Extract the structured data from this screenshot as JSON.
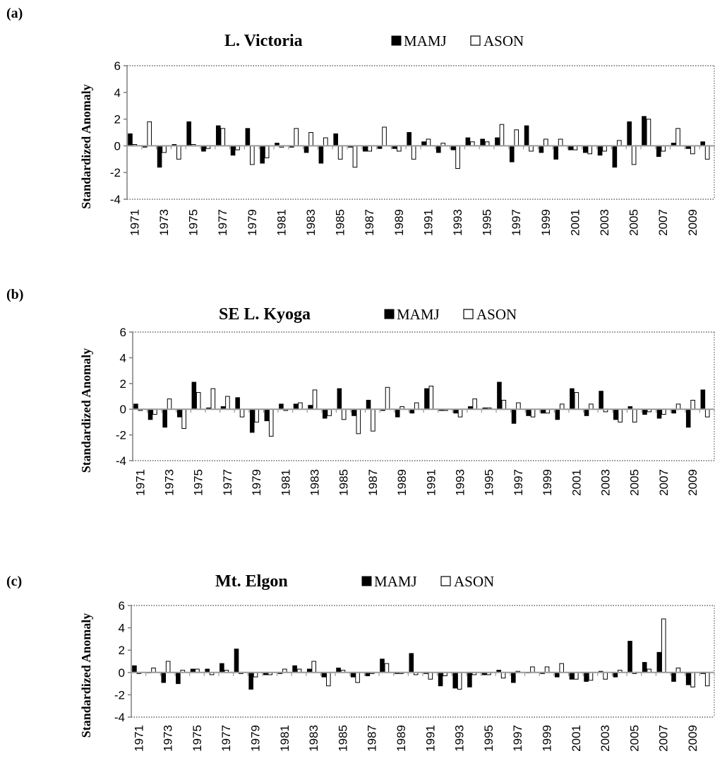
{
  "panels": [
    {
      "label": "(a)",
      "chart_data": {
        "type": "bar",
        "title": "L. Victoria",
        "ylabel": "Standardized Anomaly",
        "xlabel": "",
        "ylim": [
          -4,
          6
        ],
        "yticks": [
          "6",
          "4",
          "2",
          "0",
          "-2",
          "-4"
        ],
        "legend": {
          "position": "top",
          "entries": [
            "MAMJ",
            "ASON"
          ]
        },
        "x_tick_labels": [
          "1971",
          "1973",
          "1975",
          "1977",
          "1979",
          "1981",
          "1983",
          "1985",
          "1987",
          "1989",
          "1991",
          "1993",
          "1995",
          "1997",
          "1999",
          "2001",
          "2003",
          "2005",
          "2007",
          "2009"
        ],
        "categories": [
          "1971",
          "1972",
          "1973",
          "1974",
          "1975",
          "1976",
          "1977",
          "1978",
          "1979",
          "1980",
          "1981",
          "1982",
          "1983",
          "1984",
          "1985",
          "1986",
          "1987",
          "1988",
          "1989",
          "1990",
          "1991",
          "1992",
          "1993",
          "1994",
          "1995",
          "1996",
          "1997",
          "1998",
          "1999",
          "2000",
          "2001",
          "2002",
          "2003",
          "2004",
          "2005",
          "2006",
          "2007",
          "2008",
          "2009",
          "2010"
        ],
        "series": [
          {
            "name": "MAMJ",
            "values": [
              0.9,
              -0.1,
              -1.6,
              0.1,
              1.8,
              -0.4,
              1.5,
              -0.7,
              1.3,
              -1.3,
              0.2,
              -0.1,
              -0.5,
              -1.3,
              0.9,
              -0.1,
              -0.4,
              -0.2,
              -0.2,
              1.0,
              0.3,
              -0.5,
              -0.3,
              0.6,
              0.5,
              0.6,
              -1.2,
              1.5,
              -0.5,
              -1.0,
              -0.3,
              -0.5,
              -0.7,
              -1.6,
              1.8,
              2.2,
              -0.8,
              0.2,
              -0.2,
              0.3
            ]
          },
          {
            "name": "ASON",
            "values": [
              0.1,
              1.8,
              -0.5,
              -1.0,
              0.1,
              -0.2,
              1.3,
              -0.3,
              -1.4,
              -0.9,
              -0.1,
              1.3,
              1.0,
              0.6,
              -1.0,
              -1.6,
              -0.4,
              1.4,
              -0.4,
              -1.0,
              0.5,
              0.2,
              -1.7,
              0.3,
              0.3,
              1.6,
              1.2,
              -0.4,
              0.5,
              0.5,
              -0.3,
              -0.6,
              -0.4,
              0.4,
              -1.4,
              2.0,
              -0.4,
              1.3,
              -0.6,
              -1.0
            ]
          }
        ]
      }
    },
    {
      "label": "(b)",
      "chart_data": {
        "type": "bar",
        "title": "SE L. Kyoga",
        "ylabel": "Standardized Anomaly",
        "xlabel": "",
        "ylim": [
          -4,
          6
        ],
        "yticks": [
          "6",
          "4",
          "2",
          "0",
          "-2",
          "-4"
        ],
        "legend": {
          "position": "top",
          "entries": [
            "MAMJ",
            "ASON"
          ]
        },
        "x_tick_labels": [
          "1971",
          "1973",
          "1975",
          "1977",
          "1979",
          "1981",
          "1983",
          "1985",
          "1987",
          "1989",
          "1991",
          "1993",
          "1995",
          "1997",
          "1999",
          "2001",
          "2003",
          "2005",
          "2007",
          "2009"
        ],
        "categories": [
          "1971",
          "1972",
          "1973",
          "1974",
          "1975",
          "1976",
          "1977",
          "1978",
          "1979",
          "1980",
          "1981",
          "1982",
          "1983",
          "1984",
          "1985",
          "1986",
          "1987",
          "1988",
          "1989",
          "1990",
          "1991",
          "1992",
          "1993",
          "1994",
          "1995",
          "1996",
          "1997",
          "1998",
          "1999",
          "2000",
          "2001",
          "2002",
          "2003",
          "2004",
          "2005",
          "2006",
          "2007",
          "2008",
          "2009",
          "2010"
        ],
        "series": [
          {
            "name": "MAMJ",
            "values": [
              0.4,
              -0.8,
              -1.4,
              -0.6,
              2.1,
              0.1,
              0.2,
              0.9,
              -1.8,
              -0.9,
              0.4,
              0.4,
              0.3,
              -0.7,
              1.6,
              -0.5,
              0.7,
              -0.1,
              -0.6,
              -0.3,
              1.6,
              -0.1,
              -0.3,
              0.2,
              0.1,
              2.1,
              -1.1,
              -0.5,
              -0.3,
              -0.8,
              1.6,
              -0.5,
              1.4,
              -0.8,
              0.2,
              -0.4,
              -0.7,
              -0.3,
              -1.4,
              1.5
            ]
          },
          {
            "name": "ASON",
            "values": [
              -0.1,
              -0.4,
              0.8,
              -1.5,
              1.3,
              1.6,
              1.0,
              -0.6,
              -1.0,
              -2.1,
              -0.1,
              0.5,
              1.5,
              -0.5,
              -0.8,
              -1.9,
              -1.7,
              1.7,
              0.2,
              0.5,
              1.8,
              -0.1,
              -0.6,
              0.8,
              0.1,
              0.7,
              0.5,
              -0.6,
              -0.3,
              0.4,
              1.3,
              0.4,
              -0.2,
              -1.0,
              -1.0,
              -0.2,
              -0.4,
              0.4,
              0.7,
              -0.6
            ]
          }
        ]
      }
    },
    {
      "label": "(c)",
      "chart_data": {
        "type": "bar",
        "title": "Mt. Elgon",
        "ylabel": "Standardized Anomaly",
        "xlabel": "",
        "ylim": [
          -4,
          6
        ],
        "yticks": [
          "6",
          "4",
          "2",
          "0",
          "-2",
          "-4"
        ],
        "legend": {
          "position": "top",
          "entries": [
            "MAMJ",
            "ASON"
          ]
        },
        "x_tick_labels": [
          "1971",
          "1973",
          "1975",
          "1977",
          "1979",
          "1981",
          "1983",
          "1985",
          "1987",
          "1989",
          "1991",
          "1993",
          "1995",
          "1997",
          "1999",
          "2001",
          "2003",
          "2005",
          "2007",
          "2009"
        ],
        "categories": [
          "1971",
          "1972",
          "1973",
          "1974",
          "1975",
          "1976",
          "1977",
          "1978",
          "1979",
          "1980",
          "1981",
          "1982",
          "1983",
          "1984",
          "1985",
          "1986",
          "1987",
          "1988",
          "1989",
          "1990",
          "1991",
          "1992",
          "1993",
          "1994",
          "1995",
          "1996",
          "1997",
          "1998",
          "1999",
          "2000",
          "2001",
          "2002",
          "2003",
          "2004",
          "2005",
          "2006",
          "2007",
          "2008",
          "2009",
          "2010"
        ],
        "series": [
          {
            "name": "MAMJ",
            "values": [
              0.6,
              0.0,
              -0.9,
              -1.0,
              0.3,
              0.3,
              0.8,
              2.1,
              -1.5,
              -0.2,
              -0.1,
              0.6,
              0.3,
              -0.4,
              0.4,
              -0.4,
              -0.3,
              1.2,
              -0.1,
              1.7,
              -0.1,
              -1.2,
              -1.4,
              -1.3,
              -0.2,
              0.2,
              -0.9,
              0.0,
              -0.1,
              -0.4,
              -0.6,
              -0.8,
              0.1,
              -0.4,
              2.8,
              0.9,
              1.8,
              -0.8,
              -1.1,
              -0.1
            ]
          },
          {
            "name": "ASON",
            "values": [
              -0.1,
              0.4,
              1.0,
              0.2,
              0.3,
              -0.2,
              0.2,
              -0.1,
              -0.4,
              -0.2,
              0.3,
              0.3,
              1.0,
              -1.2,
              0.2,
              -0.9,
              -0.1,
              0.8,
              -0.1,
              -0.2,
              -0.6,
              -0.3,
              -1.5,
              -0.2,
              -0.2,
              -0.5,
              0.1,
              0.5,
              0.5,
              0.8,
              -0.6,
              -0.7,
              -0.6,
              0.2,
              -0.1,
              0.3,
              4.8,
              0.4,
              -1.3,
              -1.2
            ]
          }
        ]
      }
    }
  ]
}
